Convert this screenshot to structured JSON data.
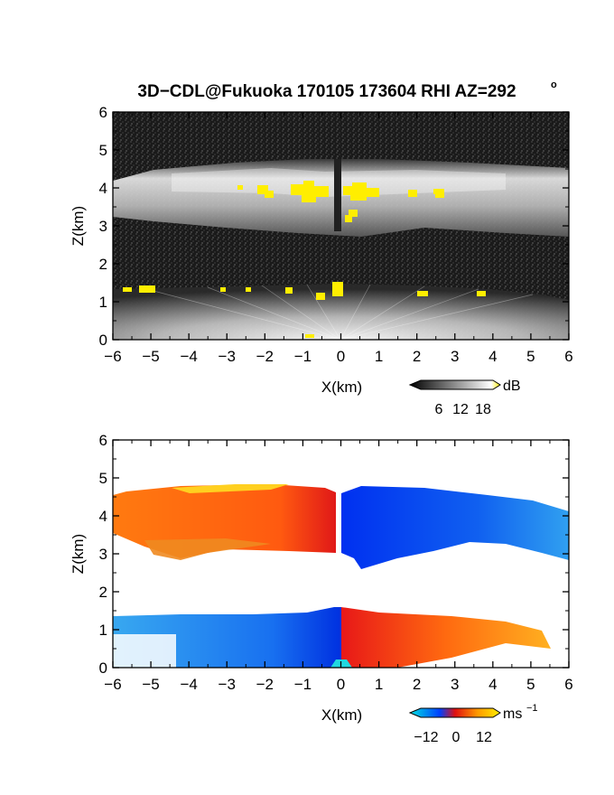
{
  "figure_title": "3D−CDL@Fukuoka 170105 173604 RHI AZ=292",
  "title_degree": "o",
  "chart_data": [
    {
      "type": "heatmap",
      "name": "reflectivity",
      "xlabel": "X(km)",
      "ylabel": "Z(km)",
      "xlim": [
        -6,
        6
      ],
      "ylim": [
        0,
        6
      ],
      "x_ticks": [
        -6,
        -5,
        -4,
        -3,
        -2,
        -1,
        0,
        1,
        2,
        3,
        4,
        5,
        6
      ],
      "y_ticks": [
        0,
        1,
        2,
        3,
        4,
        5,
        6
      ],
      "x_tick_labels": [
        "−6",
        "−5",
        "−4",
        "−3",
        "−2",
        "−1",
        "0",
        "1",
        "2",
        "3",
        "4",
        "5",
        "6"
      ],
      "y_tick_labels": [
        "0",
        "1",
        "2",
        "3",
        "4",
        "5",
        "6"
      ],
      "colorbar": {
        "unit": "dB",
        "ticks": [
          6,
          12,
          18
        ],
        "tick_labels": [
          "6",
          "12",
          "18"
        ],
        "range": [
          0,
          20
        ],
        "colors": [
          "#000000",
          "#ffffff",
          "#ffee00"
        ]
      },
      "layers": [
        {
          "x": [
            -6,
            6
          ],
          "z": [
            3.1,
            4.75
          ],
          "level": "bright"
        },
        {
          "x": [
            -6,
            6
          ],
          "z": [
            0,
            1.35
          ],
          "level": "fan-from-origin"
        }
      ],
      "saturated_color": "#ffee00"
    },
    {
      "type": "heatmap",
      "name": "doppler-velocity",
      "xlabel": "X(km)",
      "ylabel": "Z(km)",
      "xlim": [
        -6,
        6
      ],
      "ylim": [
        0,
        6
      ],
      "x_ticks": [
        -6,
        -5,
        -4,
        -3,
        -2,
        -1,
        0,
        1,
        2,
        3,
        4,
        5,
        6
      ],
      "y_ticks": [
        0,
        1,
        2,
        3,
        4,
        5,
        6
      ],
      "x_tick_labels": [
        "−6",
        "−5",
        "−4",
        "−3",
        "−2",
        "−1",
        "0",
        "1",
        "2",
        "3",
        "4",
        "5",
        "6"
      ],
      "y_tick_labels": [
        "0",
        "1",
        "2",
        "3",
        "4",
        "5",
        "6"
      ],
      "colorbar": {
        "unit": "ms",
        "unit_exponent": "−1",
        "ticks": [
          -12,
          0,
          12
        ],
        "tick_labels": [
          "−12",
          "0",
          "12"
        ],
        "range": [
          -16,
          16
        ],
        "colors": [
          "#00e0e0",
          "#0040ff",
          "#e01010",
          "#ff9a00",
          "#ffee00"
        ]
      },
      "upper_layer": {
        "left_velocity": 10,
        "right_velocity": -9,
        "z": [
          2.6,
          4.75
        ]
      },
      "lower_layer": {
        "left_velocity": -10,
        "right_velocity": 9,
        "z": [
          0,
          1.55
        ]
      }
    }
  ]
}
